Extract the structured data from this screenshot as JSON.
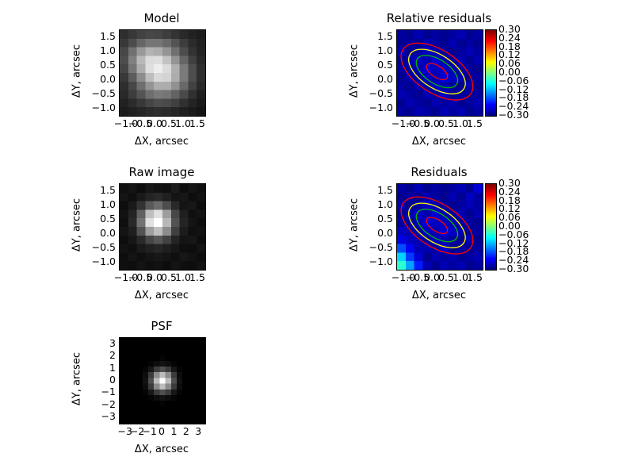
{
  "figure": {
    "background": "#ffffff"
  },
  "chart_data": [
    {
      "id": "model",
      "type": "heatmap",
      "title": "Model",
      "xlabel": "ΔX, arcsec",
      "ylabel": "ΔY, arcsec",
      "colormap": "gray",
      "vmin": 0.0,
      "vmax": 1.0,
      "extent": {
        "xmin": -1.25,
        "xmax": 1.75,
        "ymin": -1.25,
        "ymax": 1.75
      },
      "xticks": [
        -1.0,
        -0.5,
        0.0,
        0.5,
        1.0,
        1.5
      ],
      "xtick_labels": [
        "−1.0",
        "−0.5",
        "0.0",
        "0.5",
        "1.0",
        "1.5"
      ],
      "yticks": [
        1.5,
        1.0,
        0.5,
        0.0,
        -0.5,
        -1.0
      ],
      "ytick_labels": [
        "1.5",
        "1.0",
        "0.5",
        "0.0",
        "−0.5",
        "−1.0"
      ],
      "grid": [
        [
          0.18,
          0.22,
          0.26,
          0.28,
          0.27,
          0.24,
          0.2,
          0.16,
          0.13,
          0.11
        ],
        [
          0.22,
          0.3,
          0.4,
          0.46,
          0.46,
          0.41,
          0.33,
          0.24,
          0.17,
          0.13
        ],
        [
          0.28,
          0.44,
          0.6,
          0.7,
          0.68,
          0.58,
          0.44,
          0.3,
          0.2,
          0.14
        ],
        [
          0.3,
          0.5,
          0.72,
          0.86,
          0.87,
          0.76,
          0.58,
          0.4,
          0.25,
          0.16
        ],
        [
          0.27,
          0.46,
          0.68,
          0.87,
          0.93,
          0.86,
          0.69,
          0.48,
          0.3,
          0.18
        ],
        [
          0.22,
          0.36,
          0.55,
          0.74,
          0.85,
          0.83,
          0.68,
          0.48,
          0.3,
          0.18
        ],
        [
          0.18,
          0.28,
          0.43,
          0.58,
          0.68,
          0.68,
          0.57,
          0.41,
          0.26,
          0.16
        ],
        [
          0.16,
          0.24,
          0.33,
          0.43,
          0.48,
          0.46,
          0.39,
          0.29,
          0.19,
          0.12
        ],
        [
          0.13,
          0.17,
          0.22,
          0.27,
          0.3,
          0.29,
          0.25,
          0.19,
          0.14,
          0.1
        ],
        [
          0.11,
          0.13,
          0.15,
          0.17,
          0.18,
          0.17,
          0.15,
          0.12,
          0.1,
          0.08
        ]
      ]
    },
    {
      "id": "relative_residuals",
      "type": "heatmap",
      "title": "Relative residuals",
      "xlabel": "ΔX, arcsec",
      "ylabel": "ΔY, arcsec",
      "colormap": "jet",
      "vmin": -0.3,
      "vmax": 0.3,
      "extent": {
        "xmin": -1.25,
        "xmax": 1.75,
        "ymin": -1.25,
        "ymax": 1.75
      },
      "xticks": [
        -1.0,
        -0.5,
        0.0,
        0.5,
        1.0,
        1.5
      ],
      "xtick_labels": [
        "−1.0",
        "−0.5",
        "0.0",
        "0.5",
        "1.0",
        "1.5"
      ],
      "yticks": [
        1.5,
        1.0,
        0.5,
        0.0,
        -0.5,
        -1.0
      ],
      "ytick_labels": [
        "1.5",
        "1.0",
        "0.5",
        "0.0",
        "−0.5",
        "−1.0"
      ],
      "colorbar": {
        "tick_values": [
          0.3,
          0.24,
          0.18,
          0.12,
          0.06,
          0.0,
          -0.06,
          -0.12,
          -0.18,
          -0.24,
          -0.3
        ],
        "tick_labels": [
          "0.30",
          "0.24",
          "0.18",
          "0.12",
          "0.06",
          "0.00",
          "−0.06",
          "−0.12",
          "−0.18",
          "−0.24",
          "−0.30"
        ]
      },
      "contour_center": {
        "x": 0.15,
        "y": 0.3
      },
      "contours": [
        {
          "color": "#ff0000",
          "rx": 1.42,
          "ry": 0.75,
          "angle": 33
        },
        {
          "color": "#ffff00",
          "rx": 1.12,
          "ry": 0.58,
          "angle": 33
        },
        {
          "color": "#00bb00",
          "rx": 0.82,
          "ry": 0.42,
          "angle": 33
        },
        {
          "color": "#ff0000",
          "rx": 0.42,
          "ry": 0.2,
          "angle": 33
        }
      ],
      "grid": [
        [
          -0.28,
          -0.29,
          -0.27,
          -0.29,
          -0.28,
          -0.29,
          -0.28,
          -0.27,
          -0.29,
          -0.28
        ],
        [
          -0.29,
          -0.28,
          -0.29,
          -0.27,
          -0.28,
          -0.29,
          -0.27,
          -0.29,
          -0.28,
          -0.29
        ],
        [
          -0.27,
          -0.29,
          -0.28,
          -0.26,
          -0.27,
          -0.28,
          -0.29,
          -0.28,
          -0.27,
          -0.28
        ],
        [
          -0.29,
          -0.27,
          -0.26,
          -0.27,
          -0.25,
          -0.27,
          -0.28,
          -0.27,
          -0.29,
          -0.27
        ],
        [
          -0.28,
          -0.28,
          -0.27,
          -0.25,
          -0.26,
          -0.26,
          -0.27,
          -0.28,
          -0.28,
          -0.29
        ],
        [
          -0.29,
          -0.27,
          -0.28,
          -0.26,
          -0.27,
          -0.25,
          -0.26,
          -0.27,
          -0.29,
          -0.28
        ],
        [
          -0.28,
          -0.29,
          -0.27,
          -0.28,
          -0.26,
          -0.27,
          -0.28,
          -0.29,
          -0.27,
          -0.29
        ],
        [
          -0.27,
          -0.28,
          -0.29,
          -0.27,
          -0.28,
          -0.26,
          -0.29,
          -0.28,
          -0.29,
          -0.28
        ],
        [
          -0.29,
          -0.27,
          -0.28,
          -0.29,
          -0.27,
          -0.28,
          -0.27,
          -0.29,
          -0.28,
          -0.27
        ],
        [
          -0.28,
          -0.29,
          -0.27,
          -0.28,
          -0.29,
          -0.27,
          -0.28,
          -0.27,
          -0.29,
          -0.28
        ]
      ]
    },
    {
      "id": "raw_image",
      "type": "heatmap",
      "title": "Raw image",
      "xlabel": "ΔX, arcsec",
      "ylabel": "ΔY, arcsec",
      "colormap": "gray",
      "vmin": 0.0,
      "vmax": 1.0,
      "extent": {
        "xmin": -1.25,
        "xmax": 1.75,
        "ymin": -1.25,
        "ymax": 1.75
      },
      "xticks": [
        -1.0,
        -0.5,
        0.0,
        0.5,
        1.0,
        1.5
      ],
      "xtick_labels": [
        "−1.0",
        "−0.5",
        "0.0",
        "0.5",
        "1.0",
        "1.5"
      ],
      "yticks": [
        1.5,
        1.0,
        0.5,
        0.0,
        -0.5,
        -1.0
      ],
      "ytick_labels": [
        "1.5",
        "1.0",
        "0.5",
        "0.0",
        "−0.5",
        "−1.0"
      ],
      "grid": [
        [
          0.06,
          0.08,
          0.05,
          0.09,
          0.07,
          0.06,
          0.1,
          0.05,
          0.08,
          0.06
        ],
        [
          0.08,
          0.06,
          0.1,
          0.14,
          0.16,
          0.12,
          0.08,
          0.09,
          0.05,
          0.07
        ],
        [
          0.05,
          0.1,
          0.2,
          0.35,
          0.42,
          0.3,
          0.16,
          0.08,
          0.09,
          0.05
        ],
        [
          0.07,
          0.14,
          0.38,
          0.75,
          0.88,
          0.62,
          0.28,
          0.12,
          0.06,
          0.08
        ],
        [
          0.06,
          0.16,
          0.45,
          0.88,
          1.0,
          0.72,
          0.32,
          0.14,
          0.08,
          0.05
        ],
        [
          0.08,
          0.12,
          0.32,
          0.62,
          0.75,
          0.55,
          0.25,
          0.11,
          0.06,
          0.07
        ],
        [
          0.05,
          0.09,
          0.16,
          0.28,
          0.34,
          0.26,
          0.14,
          0.08,
          0.09,
          0.05
        ],
        [
          0.07,
          0.06,
          0.1,
          0.13,
          0.15,
          0.12,
          0.09,
          0.06,
          0.05,
          0.08
        ],
        [
          0.05,
          0.08,
          0.06,
          0.08,
          0.09,
          0.08,
          0.06,
          0.09,
          0.07,
          0.05
        ],
        [
          0.06,
          0.05,
          0.08,
          0.06,
          0.07,
          0.05,
          0.08,
          0.06,
          0.05,
          0.07
        ]
      ]
    },
    {
      "id": "residuals",
      "type": "heatmap",
      "title": "Residuals",
      "xlabel": "ΔX, arcsec",
      "ylabel": "ΔY, arcsec",
      "colormap": "jet",
      "vmin": -0.3,
      "vmax": 0.3,
      "extent": {
        "xmin": -1.25,
        "xmax": 1.75,
        "ymin": -1.25,
        "ymax": 1.75
      },
      "xticks": [
        -1.0,
        -0.5,
        0.0,
        0.5,
        1.0,
        1.5
      ],
      "xtick_labels": [
        "−1.0",
        "−0.5",
        "0.0",
        "0.5",
        "1.0",
        "1.5"
      ],
      "yticks": [
        1.5,
        1.0,
        0.5,
        0.0,
        -0.5,
        -1.0
      ],
      "ytick_labels": [
        "1.5",
        "1.0",
        "0.5",
        "0.0",
        "−0.5",
        "−1.0"
      ],
      "colorbar": {
        "tick_values": [
          0.3,
          0.24,
          0.18,
          0.12,
          0.06,
          0.0,
          -0.06,
          -0.12,
          -0.18,
          -0.24,
          -0.3
        ],
        "tick_labels": [
          "0.30",
          "0.24",
          "0.18",
          "0.12",
          "0.06",
          "0.00",
          "−0.06",
          "−0.12",
          "−0.18",
          "−0.24",
          "−0.30"
        ]
      },
      "contour_center": {
        "x": 0.15,
        "y": 0.3
      },
      "contours": [
        {
          "color": "#ff0000",
          "rx": 1.42,
          "ry": 0.75,
          "angle": 33
        },
        {
          "color": "#ffff00",
          "rx": 1.12,
          "ry": 0.58,
          "angle": 33
        },
        {
          "color": "#00bb00",
          "rx": 0.82,
          "ry": 0.42,
          "angle": 33
        },
        {
          "color": "#ff0000",
          "rx": 0.42,
          "ry": 0.2,
          "angle": 33
        }
      ],
      "grid": [
        [
          -0.28,
          -0.29,
          -0.27,
          -0.29,
          -0.28,
          -0.29,
          -0.28,
          -0.27,
          -0.29,
          -0.25
        ],
        [
          -0.29,
          -0.28,
          -0.29,
          -0.27,
          -0.28,
          -0.29,
          -0.27,
          -0.29,
          -0.26,
          -0.28
        ],
        [
          -0.27,
          -0.29,
          -0.28,
          -0.26,
          -0.27,
          -0.28,
          -0.29,
          -0.28,
          -0.27,
          -0.28
        ],
        [
          -0.29,
          -0.27,
          -0.26,
          -0.27,
          -0.25,
          -0.27,
          -0.28,
          -0.27,
          -0.29,
          -0.27
        ],
        [
          -0.28,
          -0.28,
          -0.27,
          -0.25,
          -0.26,
          -0.26,
          -0.27,
          -0.28,
          -0.28,
          -0.29
        ],
        [
          -0.26,
          -0.27,
          -0.28,
          -0.26,
          -0.27,
          -0.25,
          -0.26,
          -0.27,
          -0.29,
          -0.28
        ],
        [
          -0.24,
          -0.26,
          -0.27,
          -0.28,
          -0.26,
          -0.27,
          -0.28,
          -0.29,
          -0.27,
          -0.29
        ],
        [
          -0.18,
          -0.23,
          -0.27,
          -0.27,
          -0.28,
          -0.26,
          -0.29,
          -0.28,
          -0.29,
          -0.28
        ],
        [
          -0.1,
          -0.19,
          -0.25,
          -0.29,
          -0.27,
          -0.28,
          -0.27,
          -0.29,
          -0.28,
          -0.27
        ],
        [
          -0.05,
          -0.13,
          -0.21,
          -0.27,
          -0.29,
          -0.27,
          -0.28,
          -0.27,
          -0.29,
          -0.28
        ]
      ]
    },
    {
      "id": "psf",
      "type": "heatmap",
      "title": "PSF",
      "xlabel": "ΔX, arcsec",
      "ylabel": "ΔY, arcsec",
      "colormap": "gray",
      "vmin": 0.0,
      "vmax": 1.0,
      "extent": {
        "xmin": -3.5,
        "xmax": 3.5,
        "ymin": -3.5,
        "ymax": 3.5
      },
      "xticks": [
        -3,
        -2,
        -1,
        0,
        1,
        2,
        3
      ],
      "xtick_labels": [
        "−3",
        "−2",
        "−1",
        "0",
        "1",
        "2",
        "3"
      ],
      "yticks": [
        3,
        2,
        1,
        0,
        -1,
        -2,
        -3
      ],
      "ytick_labels": [
        "3",
        "2",
        "1",
        "0",
        "−1",
        "−2",
        "−3"
      ],
      "grid": [
        [
          0,
          0,
          0,
          0,
          0,
          0,
          0,
          0,
          0,
          0,
          0,
          0,
          0,
          0,
          0
        ],
        [
          0,
          0,
          0,
          0,
          0,
          0,
          0,
          0,
          0,
          0,
          0,
          0,
          0,
          0,
          0
        ],
        [
          0,
          0,
          0,
          0,
          0,
          0,
          0,
          0,
          0,
          0,
          0,
          0,
          0,
          0,
          0
        ],
        [
          0,
          0,
          0,
          0,
          0,
          0,
          0,
          0.02,
          0,
          0,
          0,
          0,
          0,
          0,
          0
        ],
        [
          0,
          0,
          0,
          0,
          0,
          0.02,
          0.05,
          0.07,
          0.05,
          0.02,
          0,
          0,
          0,
          0,
          0
        ],
        [
          0,
          0,
          0,
          0,
          0.02,
          0.09,
          0.23,
          0.31,
          0.23,
          0.09,
          0.02,
          0,
          0,
          0,
          0
        ],
        [
          0,
          0,
          0,
          0,
          0.05,
          0.23,
          0.55,
          0.74,
          0.55,
          0.23,
          0.05,
          0,
          0,
          0,
          0
        ],
        [
          0,
          0,
          0,
          0,
          0.07,
          0.31,
          0.74,
          1.0,
          0.74,
          0.31,
          0.07,
          0,
          0,
          0,
          0
        ],
        [
          0,
          0,
          0,
          0,
          0.05,
          0.23,
          0.55,
          0.74,
          0.55,
          0.23,
          0.05,
          0,
          0,
          0,
          0
        ],
        [
          0,
          0,
          0,
          0,
          0.02,
          0.09,
          0.23,
          0.31,
          0.23,
          0.09,
          0.02,
          0,
          0,
          0,
          0
        ],
        [
          0,
          0,
          0,
          0,
          0,
          0.02,
          0.05,
          0.07,
          0.05,
          0.02,
          0,
          0,
          0,
          0,
          0
        ],
        [
          0,
          0,
          0,
          0,
          0,
          0,
          0,
          0.02,
          0,
          0,
          0,
          0,
          0,
          0,
          0
        ],
        [
          0,
          0,
          0,
          0,
          0,
          0,
          0,
          0,
          0,
          0,
          0,
          0,
          0,
          0,
          0
        ],
        [
          0,
          0,
          0,
          0,
          0,
          0,
          0,
          0,
          0,
          0,
          0,
          0,
          0,
          0,
          0
        ],
        [
          0,
          0,
          0,
          0,
          0,
          0,
          0,
          0,
          0,
          0,
          0,
          0,
          0,
          0,
          0
        ]
      ]
    }
  ]
}
